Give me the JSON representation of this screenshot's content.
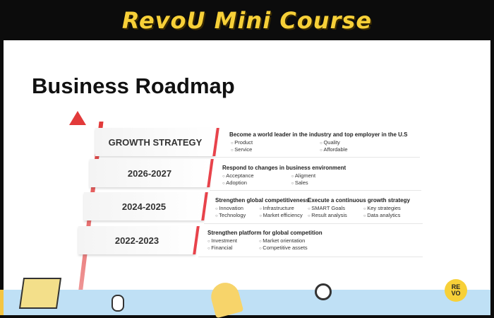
{
  "header": {
    "title": "RevoU Mini Course"
  },
  "slide": {
    "title": "Business Roadmap",
    "steps": [
      {
        "label": "GROWTH STRATEGY"
      },
      {
        "label": "2026-2027"
      },
      {
        "label": "2024-2025"
      },
      {
        "label": "2022-2023"
      }
    ],
    "descriptions": {
      "growth": {
        "heading": "Become a world leader in the industry and top employer in the U.S",
        "items": [
          "Product",
          "Quality",
          "Service",
          "Affordable"
        ]
      },
      "y2026": {
        "heading": "Respond to changes in business environment",
        "items": [
          "Acceptance",
          "Aligment",
          "Adoption",
          "Sales"
        ]
      },
      "y2024a": {
        "heading": "Strengthen global competitiveness",
        "items": [
          "Innovation",
          "Infrastructure",
          "Technology",
          "Market efficiency"
        ]
      },
      "y2024b": {
        "heading": "Execute a continuous growth strategy",
        "items": [
          "SMART Goals",
          "Key strategies",
          "Result analysis",
          "Data analytics"
        ]
      },
      "y2022": {
        "heading": "Strengthen platform for global competition",
        "items": [
          "Investment",
          "Market orientation",
          "Financial",
          "Competitive assets"
        ]
      }
    }
  },
  "logo": {
    "line1": "RE",
    "line2": "VO"
  }
}
